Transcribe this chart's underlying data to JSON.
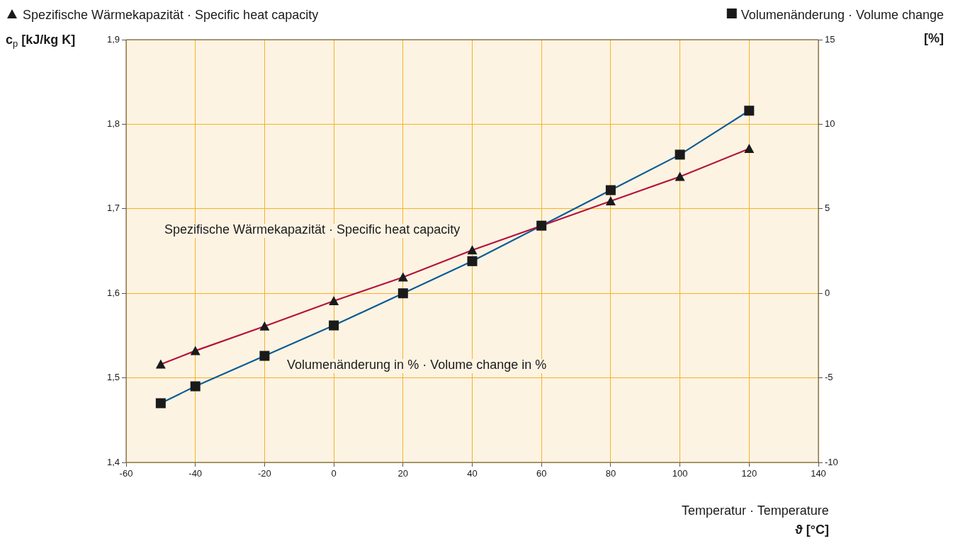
{
  "chart_data": {
    "type": "line",
    "xlabel": "Temperatur · Temperature\nϑ [°C]",
    "ylabel": "c$_{p}$ [kJ/kg K]",
    "x": [
      -50,
      -40,
      -20,
      0,
      20,
      40,
      60,
      80,
      100,
      120
    ],
    "series": [
      {
        "name": "Spezifische Wärmekapazität · Specific heat capacity",
        "color": "#b5123e",
        "marker": "triangle",
        "values": [
          1.516,
          1.532,
          1.561,
          1.591,
          1.619,
          1.651,
          1.68,
          1.709,
          1.738,
          1.771
        ]
      },
      {
        "name": "Volumenänderung · Volume change",
        "color": "#0a5c96",
        "marker": "square",
        "axis": "y2",
        "values": [
          -6.5,
          -5.5,
          -3.7,
          -1.9,
          0,
          1.9,
          4,
          6.1,
          8.2,
          10.8
        ]
      }
    ],
    "xlim": [
      -60,
      140
    ],
    "xticks": [
      -60,
      -40,
      -20,
      0,
      20,
      40,
      60,
      80,
      100,
      120,
      140
    ],
    "ylim": [
      1.4,
      1.9
    ],
    "yticks": [
      {
        "value": 1.4,
        "label": "1,4"
      },
      {
        "value": 1.5,
        "label": "1,5"
      },
      {
        "value": 1.6,
        "label": "1,6"
      },
      {
        "value": 1.7,
        "label": "1,7"
      },
      {
        "value": 1.8,
        "label": "1,8"
      },
      {
        "value": 1.9,
        "label": "1,9"
      }
    ],
    "y2lim": [
      -10,
      15
    ],
    "y2ticks": [
      -10,
      -5,
      0,
      5,
      10,
      15
    ],
    "grid": true,
    "legend": "top",
    "line_style": "solid",
    "annotations": [
      "Spezifische Wärmekapazität · Specific heat capacity",
      "Volumenänderung in % · Volume change in %",
      "[%]"
    ]
  }
}
